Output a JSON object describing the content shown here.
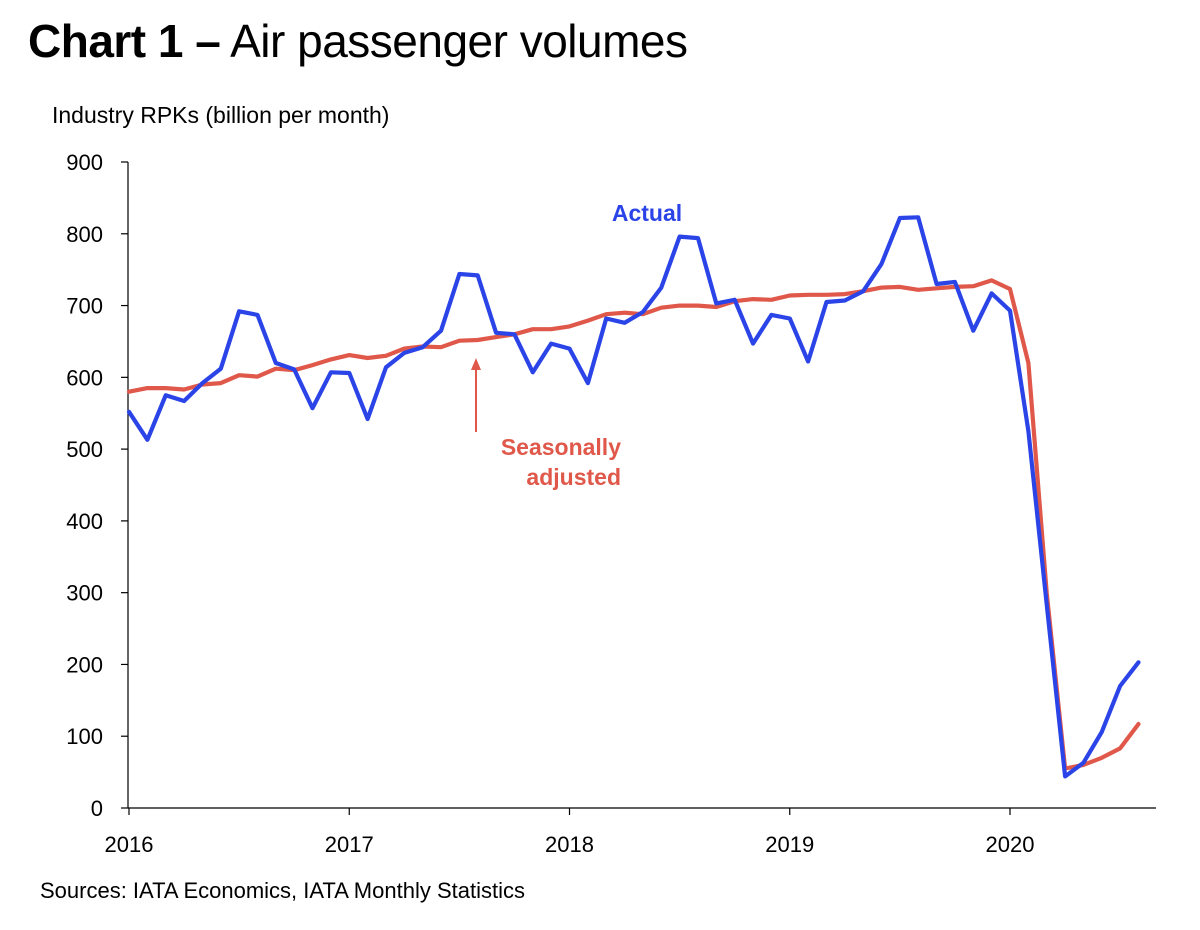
{
  "title": {
    "bold": "Chart 1 –",
    "rest": "Air passenger volumes"
  },
  "ylabel_text": "Industry RPKs (billion per month)",
  "source": "Sources: IATA Economics, IATA Monthly Statistics",
  "colors": {
    "actual": "#2b44e8",
    "seasonally_adjusted": "#e0584a"
  },
  "chart_data": {
    "type": "line",
    "title": "Chart 1 – Air passenger volumes",
    "xlabel": "",
    "ylabel": "Industry RPKs (billion per month)",
    "x_start": "2016-01",
    "frequency": "monthly",
    "xlim": [
      "2016-01",
      "2020-09"
    ],
    "ylim": [
      0,
      900
    ],
    "yticks": [
      0,
      100,
      200,
      300,
      400,
      500,
      600,
      700,
      800,
      900
    ],
    "xticks": [
      "2016",
      "2017",
      "2018",
      "2019",
      "2020"
    ],
    "grid": false,
    "legend": "none",
    "series": [
      {
        "name": "Actual",
        "color": "#2b44e8",
        "values": [
          552,
          513,
          575,
          567,
          592,
          612,
          692,
          687,
          620,
          611,
          557,
          607,
          606,
          542,
          614,
          634,
          642,
          665,
          744,
          742,
          662,
          660,
          607,
          647,
          640,
          592,
          682,
          676,
          691,
          725,
          796,
          794,
          703,
          708,
          647,
          687,
          682,
          622,
          705,
          707,
          720,
          758,
          822,
          823,
          730,
          733,
          665,
          717,
          693,
          525,
          284,
          44,
          63,
          106,
          170,
          203
        ]
      },
      {
        "name": "Seasonally adjusted",
        "color": "#e0584a",
        "values": [
          580,
          585,
          585,
          583,
          590,
          592,
          603,
          601,
          612,
          610,
          617,
          625,
          631,
          627,
          630,
          640,
          643,
          642,
          651,
          652,
          656,
          660,
          667,
          667,
          671,
          679,
          688,
          690,
          688,
          697,
          700,
          700,
          698,
          706,
          709,
          708,
          714,
          715,
          715,
          716,
          720,
          725,
          726,
          722,
          724,
          726,
          727,
          735,
          723,
          620,
          300,
          55,
          60,
          70,
          83,
          117
        ]
      }
    ],
    "annotations": [
      {
        "text": "Actual",
        "series": "Actual"
      },
      {
        "text": "Seasonally\nadjusted",
        "series": "Seasonally adjusted",
        "arrow_to": "2017-08"
      }
    ]
  }
}
